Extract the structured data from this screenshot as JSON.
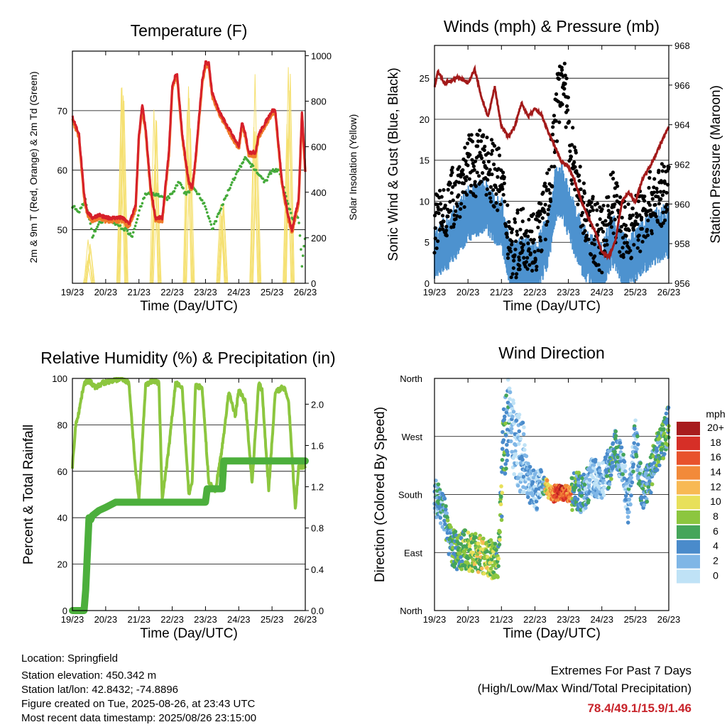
{
  "figure": {
    "x_ticks": [
      "19/23",
      "20/23",
      "21/23",
      "22/23",
      "23/23",
      "24/23",
      "25/23",
      "26/23"
    ],
    "x_label": "Time (Day/UTC)",
    "colors": {
      "temp2m": "#d6202a",
      "temp9m": "#f07a2a",
      "dewpoint": "#44aa3a",
      "solar": "#f5e070",
      "wind": "#4d92cf",
      "gust": "#000000",
      "pressure": "#a31a1a",
      "rh": "#8cc63f",
      "precip": "#4caf3c"
    }
  },
  "chart_data": [
    {
      "id": "temperature",
      "type": "line",
      "title": "Temperature (F)",
      "xlabel": "Time (Day/UTC)",
      "ylabel": "2m & 9m T (Red, Orange) & 2m Td (Green)",
      "ylabel_right": "Solar Insolation (Yellow)",
      "ylim": [
        41,
        80
      ],
      "yticks": [
        50,
        60,
        70
      ],
      "ylim_right": [
        0,
        1020
      ],
      "yticks_right": [
        0,
        200,
        400,
        600,
        800,
        1000
      ],
      "grid": true,
      "series": [
        {
          "key": "t2m",
          "color": "#d6202a",
          "x": [
            0,
            0.2,
            0.35,
            0.45,
            0.6,
            0.8,
            1.0,
            1.2,
            1.5,
            1.7,
            1.9,
            2.0,
            2.1,
            2.2,
            2.35,
            2.5,
            2.7,
            2.9,
            3.0,
            3.1,
            3.15,
            3.3,
            3.5,
            3.6,
            3.7,
            3.9,
            4.0,
            4.1,
            4.2,
            4.4,
            4.5,
            4.7,
            4.9,
            5.0,
            5.1,
            5.2,
            5.3,
            5.5,
            5.6,
            5.8,
            6.0,
            6.1,
            6.2,
            6.3,
            6.5,
            6.6,
            6.8,
            6.9,
            7.0
          ],
          "y": [
            69,
            66,
            56,
            53,
            52,
            52.5,
            52,
            52,
            52,
            51,
            54,
            66,
            71,
            67,
            57,
            52,
            52,
            63,
            74,
            76,
            76,
            66,
            58,
            57,
            62,
            75,
            78,
            78,
            73,
            70,
            69,
            67,
            65,
            64,
            68,
            66,
            63,
            63,
            66,
            68,
            70,
            70,
            64,
            58,
            52,
            50,
            55,
            70,
            60
          ]
        },
        {
          "key": "td2m",
          "color": "#44aa3a",
          "x": [
            0,
            0.2,
            0.4,
            0.6,
            0.8,
            1.0,
            1.3,
            1.6,
            1.8,
            2.0,
            2.2,
            2.5,
            2.8,
            3.0,
            3.2,
            3.4,
            3.6,
            3.8,
            4.0,
            4.2,
            4.5,
            4.8,
            5.0,
            5.2,
            5.5,
            5.8,
            6.0,
            6.2,
            6.4,
            6.6,
            6.8,
            6.9,
            7.0
          ],
          "y": [
            54,
            53,
            55,
            49,
            51,
            52,
            51,
            50,
            49,
            53,
            56,
            56,
            55,
            56,
            58,
            56,
            57,
            56,
            54,
            50,
            54,
            58,
            60,
            62,
            60,
            58,
            60,
            60,
            56,
            52,
            52,
            44,
            49
          ]
        },
        {
          "key": "solar",
          "color": "#f5e070",
          "days": [
            0,
            1,
            2,
            3,
            4,
            5,
            6
          ],
          "peaks": [
            200,
            980,
            840,
            900,
            360,
            1000,
            980
          ]
        }
      ]
    },
    {
      "id": "winds",
      "type": "line",
      "title": "Winds (mph) & Pressure (mb)",
      "xlabel": "Time (Day/UTC)",
      "ylabel": "Sonic Wind & Gust (Blue, Black)",
      "ylabel_right": "Station Pressure (Maroon)",
      "ylim": [
        0,
        29
      ],
      "yticks": [
        0,
        5,
        10,
        15,
        20,
        25
      ],
      "ylim_right": [
        956,
        968
      ],
      "yticks_right": [
        956,
        958,
        960,
        962,
        964,
        966,
        968
      ],
      "grid": true,
      "series": [
        {
          "key": "wind",
          "color": "#4d92cf",
          "x": [
            0,
            0.5,
            1.0,
            1.5,
            2.0,
            2.3,
            2.7,
            3.0,
            3.4,
            3.6,
            3.8,
            4.1,
            4.5,
            5.0,
            5.3,
            5.7,
            6.0,
            6.5,
            7.0
          ],
          "y": [
            4,
            6,
            9,
            10,
            8,
            2,
            3,
            2,
            6,
            11,
            12,
            8,
            4,
            2,
            6,
            3,
            4,
            6,
            7
          ]
        },
        {
          "key": "gust",
          "color": "#000000",
          "x": [
            0,
            0.5,
            1.0,
            1.5,
            2.0,
            2.3,
            2.7,
            3.0,
            3.4,
            3.6,
            3.8,
            4.1,
            4.5,
            5.0,
            5.3,
            5.7,
            6.0,
            6.5,
            7.0
          ],
          "y": [
            7,
            10,
            14,
            15,
            12,
            4,
            6,
            5,
            10,
            19,
            26,
            16,
            8,
            5,
            10,
            6,
            7,
            10,
            11
          ]
        },
        {
          "key": "pressure",
          "color": "#a31a1a",
          "x": [
            0,
            0.1,
            0.3,
            0.5,
            0.7,
            1.0,
            1.2,
            1.4,
            1.6,
            1.8,
            2.0,
            2.2,
            2.4,
            2.6,
            2.8,
            3.0,
            3.2,
            3.4,
            3.6,
            3.8,
            4.0,
            4.2,
            4.4,
            4.6,
            4.8,
            5.0,
            5.2,
            5.4,
            5.6,
            5.8,
            6.0,
            6.2,
            6.5,
            6.8,
            7.0
          ],
          "y": [
            965.9,
            966.7,
            966.1,
            966.2,
            966.4,
            966.1,
            966.8,
            965.4,
            964.4,
            965.9,
            963.9,
            963.4,
            963.9,
            965.1,
            964.4,
            964.8,
            964.5,
            963.6,
            962.9,
            962.1,
            961.9,
            961.1,
            960.1,
            959.3,
            958.6,
            957.6,
            957.3,
            958.1,
            960.1,
            960.6,
            960.1,
            961.2,
            962.1,
            963.2,
            963.9
          ]
        }
      ]
    },
    {
      "id": "humidity",
      "type": "line",
      "title": "Relative Humidity (%) & Precipitation (in)",
      "xlabel": "Time (Day/UTC)",
      "ylabel": "Percent & Total Rainfall",
      "ylim": [
        0,
        100
      ],
      "yticks": [
        0,
        20,
        40,
        60,
        80,
        100
      ],
      "ylim_right": [
        0,
        2.25
      ],
      "yticks_right": [
        "0.0",
        "0.4",
        "0.8",
        "1.2",
        "1.6",
        "2.0"
      ],
      "grid": true,
      "series": [
        {
          "key": "rh",
          "color": "#8cc63f",
          "x": [
            0,
            0.1,
            0.2,
            0.35,
            0.5,
            0.7,
            0.9,
            1.2,
            1.5,
            1.7,
            1.9,
            2.0,
            2.2,
            2.4,
            2.6,
            2.7,
            2.9,
            3.1,
            3.3,
            3.5,
            3.6,
            3.7,
            3.9,
            4.1,
            4.3,
            4.5,
            4.7,
            4.9,
            5.0,
            5.2,
            5.4,
            5.6,
            5.7,
            5.9,
            6.1,
            6.3,
            6.4,
            6.5,
            6.7,
            6.8,
            7.0
          ],
          "y": [
            62,
            80,
            86,
            98,
            99,
            96,
            98,
            99,
            100,
            98,
            60,
            48,
            97,
            99,
            98,
            48,
            70,
            98,
            96,
            50,
            55,
            97,
            96,
            55,
            52,
            70,
            94,
            84,
            95,
            90,
            55,
            98,
            95,
            52,
            94,
            96,
            95,
            90,
            44,
            62,
            62
          ]
        },
        {
          "key": "precip",
          "color": "#4caf3c",
          "x": [
            0,
            0.35,
            0.4,
            0.5,
            0.55,
            0.6,
            0.8,
            1.0,
            1.3,
            1.6,
            4.0,
            4.05,
            4.5,
            4.55,
            6.5,
            7.0
          ],
          "y": [
            0,
            0,
            0.2,
            0.9,
            0.88,
            0.92,
            0.97,
            1.0,
            1.05,
            1.05,
            1.05,
            1.18,
            1.18,
            1.45,
            1.45,
            1.45
          ]
        }
      ]
    },
    {
      "id": "direction",
      "type": "scatter",
      "title": "Wind Direction",
      "xlabel": "Time (Day/UTC)",
      "ylabel": "Direction (Colored By Speed)",
      "yticks": [
        "North",
        "East",
        "South",
        "West",
        "North"
      ],
      "grid": true,
      "legend": "right",
      "colorbar": {
        "title": "mph",
        "labels": [
          "20+",
          "18",
          "16",
          "14",
          "12",
          "10",
          "8",
          "6",
          "4",
          "2",
          "0"
        ],
        "colors": [
          "#a81c1e",
          "#d62f27",
          "#e8522c",
          "#f28a3a",
          "#f8b954",
          "#e8e05a",
          "#8cc63f",
          "#45a55a",
          "#4a8bcb",
          "#7fb6e6",
          "#bfe2f6"
        ]
      },
      "series": [
        {
          "key": "dir",
          "x": [
            0,
            0.3,
            0.5,
            0.7,
            0.9,
            1.1,
            1.3,
            1.5,
            1.7,
            1.9,
            2.05,
            2.2,
            2.4,
            2.6,
            2.8,
            3.0,
            3.2,
            3.3,
            3.5,
            3.8,
            4.0,
            4.2,
            4.4,
            4.5,
            4.7,
            5.0,
            5.2,
            5.4,
            5.6,
            5.8,
            6.0,
            6.2,
            6.4,
            6.6,
            6.8,
            7.0
          ],
          "y": [
            180,
            150,
            100,
            90,
            95,
            88,
            90,
            85,
            80,
            78,
            250,
            300,
            260,
            240,
            200,
            185,
            190,
            195,
            180,
            185,
            180,
            190,
            180,
            185,
            210,
            200,
            220,
            250,
            230,
            160,
            270,
            180,
            200,
            240,
            260,
            290
          ]
        }
      ]
    }
  ],
  "info": {
    "location": "Location: Springfield",
    "elevation": "Station elevation: 450.342 m",
    "latlon": "Station lat/lon: 42.8432; -74.8896",
    "created": "Figure created on Tue, 2025-08-26, at 23:43 UTC",
    "recent": "Most recent data timestamp: 2025/08/26 23:15:00"
  },
  "extremes": {
    "title": "Extremes For Past 7 Days",
    "subtitle": "(High/Low/Max Wind/Total Precipitation)",
    "values": "78.4/49.1/15.9/1.46"
  }
}
